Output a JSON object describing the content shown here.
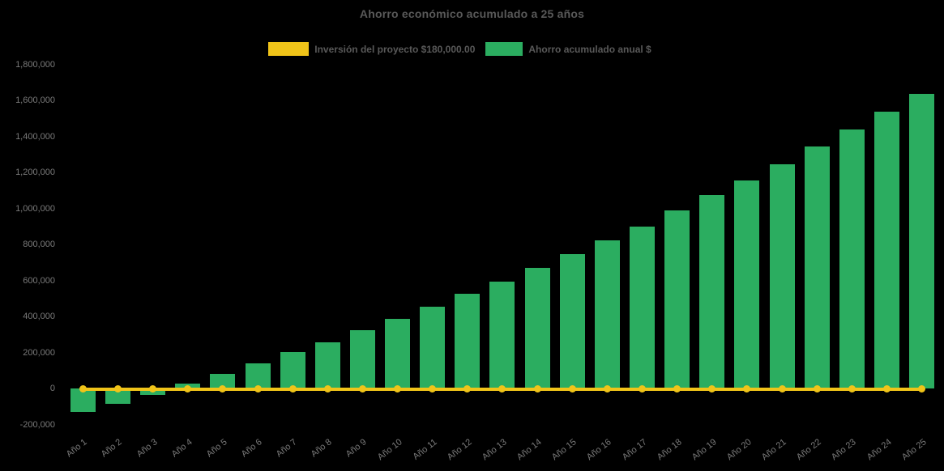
{
  "title": "Ahorro económico acumulado a 25 años",
  "legend": [
    {
      "label": "Inversión del proyecto $180,000.00",
      "color": "#f0c419"
    },
    {
      "label": "Ahorro acumulado anual $",
      "color": "#2bad60"
    }
  ],
  "colors": {
    "background": "#000000",
    "title_text": "#595959",
    "axis_label_text": "#7a7a7a",
    "investment_line": "#f0c419",
    "savings_bar": "#2bad60"
  },
  "chart_data": {
    "type": "bar",
    "title": "Ahorro económico acumulado a 25 años",
    "categories": [
      "Año 1",
      "Año 2",
      "Año 3",
      "Año 4",
      "Año 5",
      "Año 6",
      "Año 7",
      "Año 8",
      "Año 9",
      "Año 10",
      "Año 11",
      "Año 12",
      "Año 13",
      "Año 14",
      "Año 15",
      "Año 16",
      "Año 17",
      "Año 18",
      "Año 19",
      "Año 20",
      "Año 21",
      "Año 22",
      "Año 23",
      "Año 24",
      "Año 25"
    ],
    "series": [
      {
        "name": "Ahorro acumulado anual $",
        "type": "bar",
        "color": "#2bad60",
        "values": [
          -132000,
          -84000,
          -34000,
          27000,
          81000,
          138000,
          203000,
          258000,
          322000,
          388000,
          456000,
          526000,
          595000,
          670000,
          745000,
          821000,
          900000,
          987000,
          1072000,
          1157000,
          1246000,
          1344000,
          1438000,
          1537000,
          1638000
        ]
      },
      {
        "name": "Inversión del proyecto $180,000.00",
        "type": "line",
        "color": "#f0c419",
        "markers": true,
        "values": [
          0,
          0,
          0,
          0,
          0,
          0,
          0,
          0,
          0,
          0,
          0,
          0,
          0,
          0,
          0,
          0,
          0,
          0,
          0,
          0,
          0,
          0,
          0,
          0,
          0
        ]
      }
    ],
    "xlabel": "",
    "ylabel": "",
    "ylim": [
      -200000,
      1800000
    ],
    "ytick_step": 200000,
    "ytick_labels": [
      "-200,000",
      "0",
      "200,000",
      "400,000",
      "600,000",
      "800,000",
      "1,000,000",
      "1,200,000",
      "1,400,000",
      "1,600,000",
      "1,800,000"
    ],
    "grid": false,
    "legend_position": "top",
    "x_tick_rotation_deg": -38
  }
}
